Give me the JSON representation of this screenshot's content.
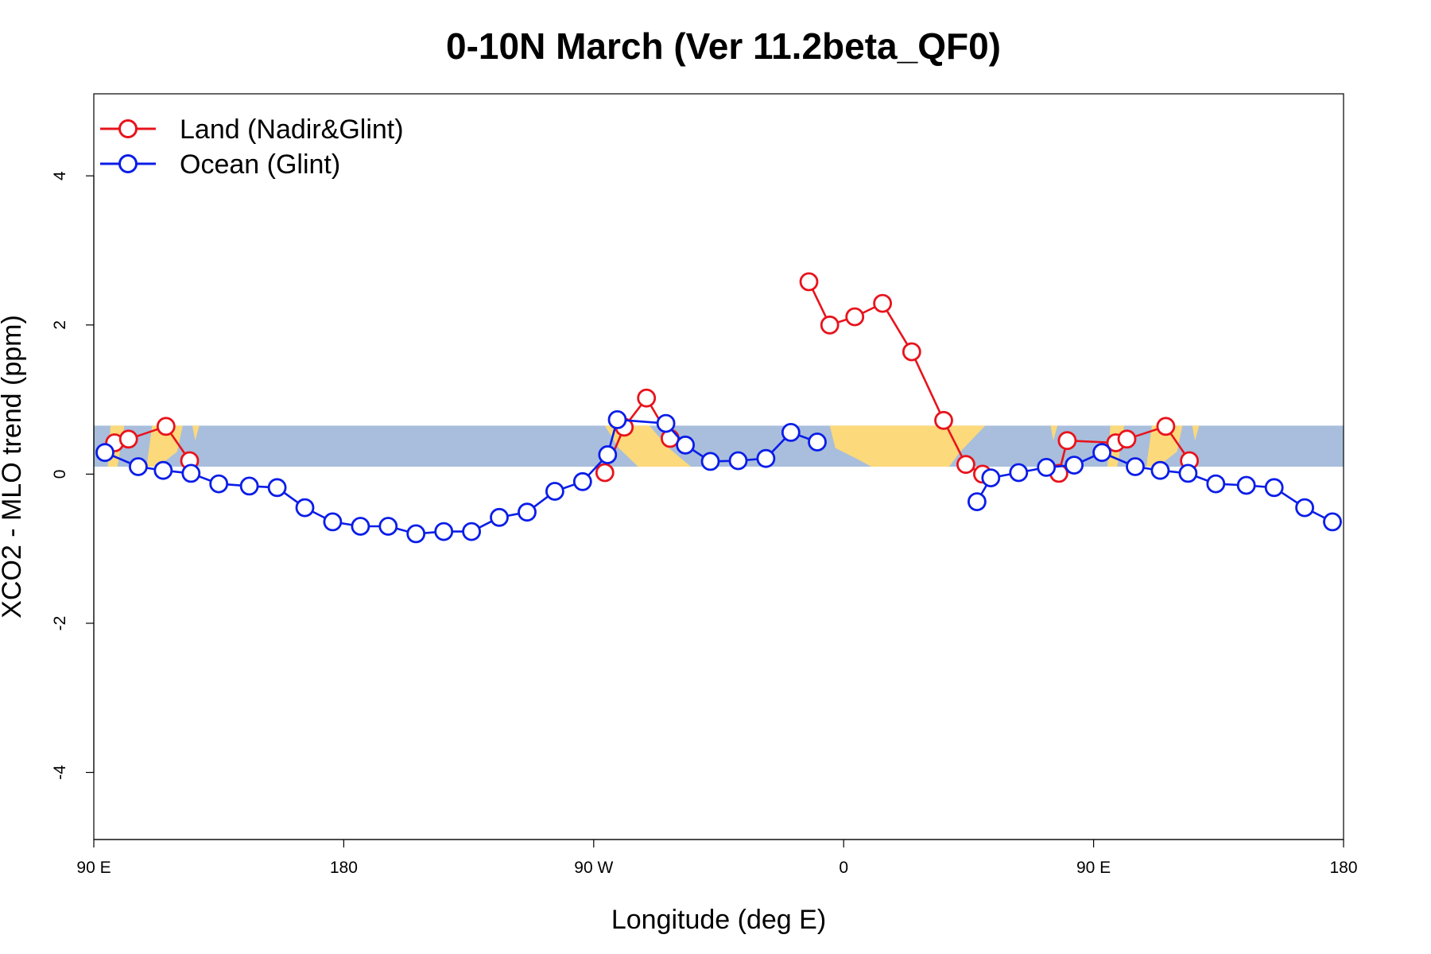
{
  "chart_data": {
    "type": "line",
    "title": "0-10N March (Ver 11.2beta_QF0)",
    "xlabel": "Longitude (deg E)",
    "ylabel": "XCO2 - MLO trend (ppm)",
    "xlim": [
      90,
      540
    ],
    "ylim": [
      -4.9,
      5.1
    ],
    "x_ticks": [
      {
        "value": 90,
        "label": "90 E"
      },
      {
        "value": 180,
        "label": "180"
      },
      {
        "value": 270,
        "label": "90 W"
      },
      {
        "value": 360,
        "label": "0"
      },
      {
        "value": 450,
        "label": "90 E"
      },
      {
        "value": 540,
        "label": "180"
      }
    ],
    "y_ticks": [
      {
        "value": -4,
        "label": "-4"
      },
      {
        "value": -2,
        "label": "-2"
      },
      {
        "value": 0,
        "label": "0"
      },
      {
        "value": 2,
        "label": "2"
      },
      {
        "value": 4,
        "label": "4"
      }
    ],
    "background_band": {
      "ymin": 0.1,
      "ymax": 0.65,
      "ocean_color": "#a8bedc",
      "land_color": "#fcd97a"
    },
    "legend_position": "top-left",
    "series": [
      {
        "name": "Land (Nadir&Glint)",
        "color": "#e8131c",
        "segments": [
          [
            [
              97.5,
              0.42
            ],
            [
              102.5,
              0.47
            ],
            [
              116,
              0.64
            ],
            [
              124.5,
              0.18
            ]
          ],
          [
            [
              274,
              0.02
            ],
            [
              281,
              0.63
            ],
            [
              289,
              1.02
            ],
            [
              297.5,
              0.48
            ]
          ],
          [
            [
              347.5,
              2.58
            ],
            [
              355,
              2.0
            ],
            [
              364,
              2.11
            ],
            [
              374,
              2.29
            ],
            [
              384.5,
              1.64
            ],
            [
              396,
              0.72
            ],
            [
              404,
              0.13
            ],
            [
              410,
              0.0
            ]
          ],
          [
            [
              437.5,
              0.01
            ],
            [
              440.5,
              0.45
            ],
            [
              458,
              0.42
            ],
            [
              462,
              0.47
            ],
            [
              476,
              0.64
            ],
            [
              484.5,
              0.18
            ]
          ]
        ]
      },
      {
        "name": "Ocean (Glint)",
        "color": "#0a1de8",
        "segments": [
          [
            [
              94,
              0.29
            ],
            [
              106,
              0.1
            ],
            [
              115,
              0.05
            ],
            [
              125,
              0.01
            ],
            [
              135,
              -0.13
            ],
            [
              146,
              -0.16
            ],
            [
              156,
              -0.18
            ],
            [
              166,
              -0.45
            ],
            [
              176,
              -0.64
            ],
            [
              186,
              -0.7
            ],
            [
              196,
              -0.7
            ],
            [
              206,
              -0.8
            ],
            [
              216,
              -0.77
            ],
            [
              226,
              -0.77
            ],
            [
              236,
              -0.58
            ],
            [
              246,
              -0.51
            ],
            [
              256,
              -0.23
            ],
            [
              266,
              -0.1
            ],
            [
              275,
              0.26
            ],
            [
              278.5,
              0.73
            ],
            [
              296,
              0.68
            ],
            [
              303,
              0.39
            ],
            [
              312,
              0.17
            ],
            [
              322,
              0.18
            ],
            [
              332,
              0.21
            ],
            [
              341,
              0.56
            ],
            [
              350.5,
              0.43
            ]
          ],
          [
            [
              408,
              -0.37
            ],
            [
              413,
              -0.05
            ],
            [
              423,
              0.02
            ],
            [
              433,
              0.09
            ],
            [
              443,
              0.12
            ],
            [
              453,
              0.29
            ],
            [
              465,
              0.1
            ],
            [
              474,
              0.05
            ],
            [
              484,
              0.01
            ],
            [
              494,
              -0.13
            ],
            [
              505,
              -0.15
            ],
            [
              515,
              -0.18
            ],
            [
              526,
              -0.45
            ],
            [
              536,
              -0.64
            ]
          ]
        ]
      }
    ]
  }
}
